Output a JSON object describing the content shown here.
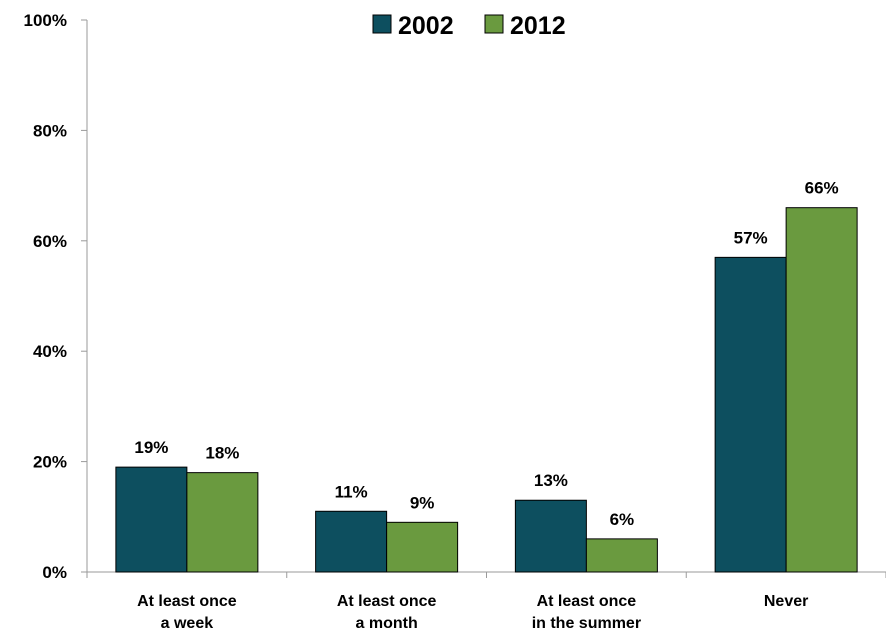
{
  "chart_data": {
    "type": "bar",
    "categories": [
      [
        "At least once",
        "a week"
      ],
      [
        "At least once",
        "a month"
      ],
      [
        "At least once",
        "in the summer"
      ],
      [
        "Never"
      ]
    ],
    "series": [
      {
        "name": "2002",
        "color": "#0d4f5f",
        "values": [
          19,
          11,
          13,
          57
        ],
        "labels": [
          "19%",
          "11%",
          "13%",
          "57%"
        ]
      },
      {
        "name": "2012",
        "color": "#6a9a3f",
        "values": [
          18,
          9,
          6,
          66
        ],
        "labels": [
          "18%",
          "9%",
          "6%",
          "66%"
        ]
      }
    ],
    "y_ticks": [
      "0%",
      "20%",
      "40%",
      "60%",
      "80%",
      "100%"
    ],
    "ylim": [
      0,
      100
    ],
    "legend_position": "top-center",
    "grid": false
  }
}
